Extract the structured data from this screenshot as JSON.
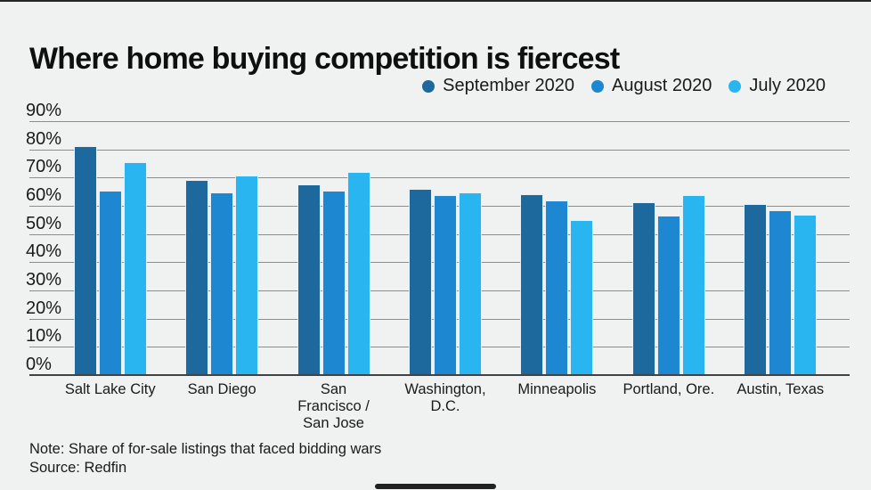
{
  "page": {
    "background_color": "#f0f1f1",
    "top_rule_color": "#262626"
  },
  "header": {
    "title": "Where home buying competition is fiercest"
  },
  "chart_data": {
    "type": "bar",
    "title": "Where home buying competition is fiercest",
    "categories": [
      "Salt Lake City",
      "San Diego",
      "San Francisco / San Jose",
      "Washington, D.C.",
      "Minneapolis",
      "Portland, Ore.",
      "Austin, Texas"
    ],
    "categories_display": [
      "Salt Lake City",
      "San Diego",
      "San\nFrancisco /\nSan Jose",
      "Washington,\nD.C.",
      "Minneapolis",
      "Portland, Ore.",
      "Austin, Texas"
    ],
    "series": [
      {
        "name": "September 2020",
        "color": "#1d689d",
        "values": [
          80.9,
          69.0,
          67.3,
          65.7,
          63.9,
          61.0,
          60.4
        ]
      },
      {
        "name": "August 2020",
        "color": "#1e87d1",
        "values": [
          65.0,
          64.4,
          65.0,
          63.5,
          61.6,
          56.2,
          58.0
        ]
      },
      {
        "name": "July 2020",
        "color": "#29b5ef",
        "values": [
          75.1,
          70.4,
          71.6,
          64.5,
          54.6,
          63.6,
          56.4
        ]
      }
    ],
    "xlabel": "",
    "ylabel": "",
    "ylim": [
      0,
      90
    ],
    "yticks": [
      "90%",
      "80%",
      "70%",
      "60%",
      "50%",
      "40%",
      "30%",
      "20%",
      "10%",
      "0%"
    ],
    "grid": true,
    "legend_position": "top-right",
    "unit": "%"
  },
  "footer": {
    "note": "Note: Share of for-sale listings that faced bidding wars",
    "source": "Source: Redfin"
  }
}
